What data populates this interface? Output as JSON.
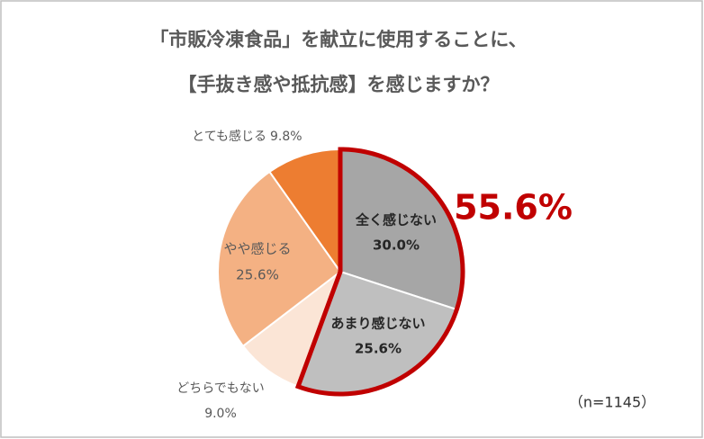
{
  "chart_data": {
    "type": "pie",
    "title": [
      "「市販冷凍食品」を献立に使用することに、",
      "【手抜き感や抵抗感】を感じますか？"
    ],
    "categories": [
      "全く感じない",
      "あまり感じない",
      "どちらでもない",
      "やや感じる",
      "とても感じる"
    ],
    "values": [
      30.0,
      25.6,
      9.0,
      25.6,
      9.8
    ],
    "value_labels": [
      "30.0%",
      "25.6%",
      "9.0%",
      "25.6%",
      "9.8%"
    ],
    "colors": [
      "#a6a6a6",
      "#bfbfbf",
      "#fbe5d6",
      "#f4b183",
      "#ed7d31"
    ],
    "annotation": "55.6%",
    "note": "（n=1145）"
  }
}
